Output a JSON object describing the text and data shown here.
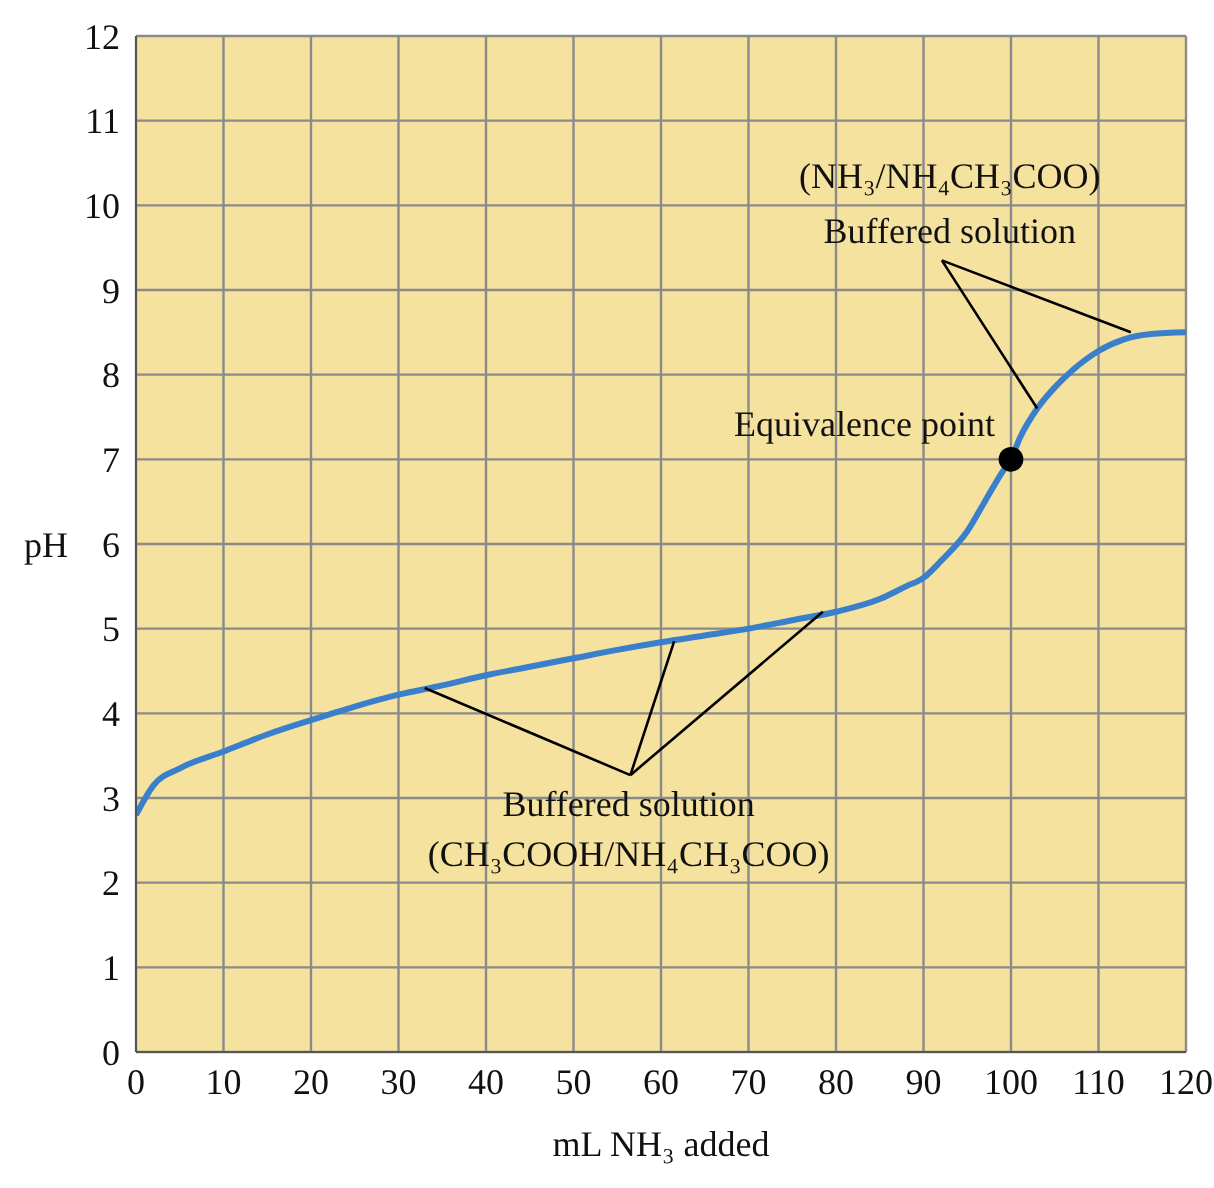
{
  "chart_data": {
    "type": "line",
    "xlabel": "mL NH₃ added",
    "ylabel": "pH",
    "xlim": [
      0,
      120
    ],
    "xticks": [
      0,
      10,
      20,
      30,
      40,
      50,
      60,
      70,
      80,
      90,
      100,
      110,
      120
    ],
    "ylim": [
      0,
      12
    ],
    "yticks": [
      0,
      1,
      2,
      3,
      4,
      5,
      6,
      7,
      8,
      9,
      10,
      11,
      12
    ],
    "grid": true,
    "series": [
      {
        "color": "#3a7fcc",
        "x": [
          0,
          2,
          5,
          10,
          15,
          20,
          25,
          30,
          35,
          40,
          45,
          50,
          55,
          60,
          65,
          70,
          75,
          80,
          85,
          88,
          90,
          92,
          95,
          97,
          99,
          100,
          101,
          103,
          105,
          107,
          110,
          113,
          116,
          120
        ],
        "values": [
          2.8,
          3.15,
          3.35,
          3.55,
          3.75,
          3.92,
          4.08,
          4.22,
          4.33,
          4.45,
          4.55,
          4.65,
          4.75,
          4.84,
          4.92,
          5.0,
          5.1,
          5.2,
          5.35,
          5.5,
          5.6,
          5.8,
          6.15,
          6.5,
          6.85,
          7.0,
          7.25,
          7.6,
          7.85,
          8.05,
          8.28,
          8.42,
          8.48,
          8.5
        ]
      },
      {
        "type": "scatter",
        "marker": "circle",
        "color": "#000000",
        "x": [
          100
        ],
        "values": [
          7
        ]
      }
    ],
    "annotations": [
      "(NH₃/NH₄CH₃COO)",
      {
        "text": "Buffered solution",
        "x": 103,
        "y": 7.6
      },
      {
        "text": "Equivalence point",
        "x": 100,
        "y": 7
      },
      {
        "text": "Buffered solution",
        "x": 61.5,
        "y": 4.85
      },
      "(CH₃COOH/NH₄CH₃COO)"
    ]
  }
}
